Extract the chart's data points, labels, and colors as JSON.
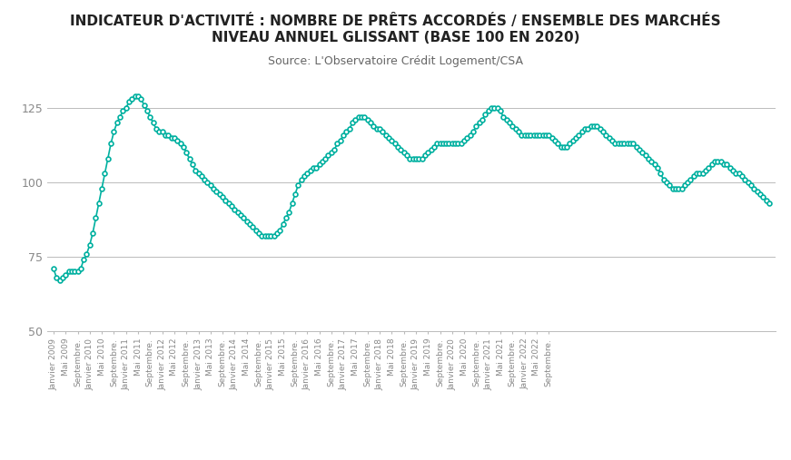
{
  "title_line1": "INDICATEUR D'ACTIVITÉ : NOMBRE DE PRÊTS ACCORDÉS / ENSEMBLE DES MARCHÉS",
  "title_line2": "NIVEAU ANNUEL GLISSANT (BASE 100 EN 2020)",
  "source": "Source: L'Observatoire Crédit Logement/CSA",
  "line_color": "#00B0A0",
  "marker_color": "#00B0A0",
  "background_color": "#FFFFFF",
  "ylim": [
    50,
    135
  ],
  "yticks": [
    50,
    75,
    100,
    125
  ],
  "title_fontsize": 11,
  "source_fontsize": 9,
  "values": [
    71,
    68,
    67,
    68,
    69,
    70,
    70,
    70,
    70,
    71,
    74,
    76,
    79,
    83,
    88,
    93,
    98,
    103,
    108,
    113,
    117,
    120,
    122,
    124,
    125,
    127,
    128,
    129,
    129,
    128,
    126,
    124,
    122,
    120,
    118,
    117,
    117,
    116,
    116,
    115,
    115,
    114,
    113,
    112,
    110,
    108,
    106,
    104,
    103,
    102,
    101,
    100,
    99,
    98,
    97,
    96,
    95,
    94,
    93,
    92,
    91,
    90,
    89,
    88,
    87,
    86,
    85,
    84,
    83,
    82,
    82,
    82,
    82,
    82,
    83,
    84,
    86,
    88,
    90,
    93,
    96,
    99,
    101,
    102,
    103,
    104,
    105,
    105,
    106,
    107,
    108,
    109,
    110,
    111,
    113,
    114,
    116,
    117,
    118,
    120,
    121,
    122,
    122,
    122,
    121,
    120,
    119,
    118,
    118,
    117,
    116,
    115,
    114,
    113,
    112,
    111,
    110,
    109,
    108,
    108,
    108,
    108,
    108,
    109,
    110,
    111,
    112,
    113,
    113,
    113,
    113,
    113,
    113,
    113,
    113,
    113,
    114,
    115,
    116,
    117,
    119,
    120,
    121,
    123,
    124,
    125,
    125,
    125,
    124,
    122,
    121,
    120,
    119,
    118,
    117,
    116,
    116,
    116,
    116,
    116,
    116,
    116,
    116,
    116,
    116,
    115,
    114,
    113,
    112,
    112,
    112,
    113,
    114,
    115,
    116,
    117,
    118,
    118,
    119,
    119,
    119,
    118,
    117,
    116,
    115,
    114,
    113,
    113,
    113,
    113,
    113,
    113,
    113,
    112,
    111,
    110,
    109,
    108,
    107,
    106,
    105,
    103,
    101,
    100,
    99,
    98,
    98,
    98,
    98,
    99,
    100,
    101,
    102,
    103,
    103,
    103,
    104,
    105,
    106,
    107,
    107,
    107,
    106,
    106,
    105,
    104,
    103,
    103,
    102,
    101,
    100,
    99,
    98,
    97,
    96,
    95,
    94,
    93
  ],
  "x_tick_labels": [
    "Janvier 2009",
    "Mai 2009",
    "Septembre.",
    "Janvier 2010",
    "Mai 2010",
    "Septembre.",
    "Janvier 2011",
    "Mai 2011",
    "Septembre.",
    "Janvier 2012",
    "Mai 2012",
    "Septembre.",
    "Janvier 2013",
    "Mai 2013",
    "Septembre.",
    "Janvier 2014",
    "Mai 2014",
    "Septembre.",
    "Janvier 2015",
    "Mai 2015",
    "Septembre.",
    "Janvier 2016",
    "Mai 2016",
    "Septembre.",
    "Janvier 2017",
    "Mai 2017",
    "Septembre.",
    "Janvier 2018",
    "Mai 2018",
    "Septembre.",
    "Janvier 2019",
    "Mai 2019",
    "Septembre.",
    "Janvier 2020",
    "Mai 2020",
    "Septembre.",
    "Janvier 2021",
    "Mai 2021",
    "Septembre.",
    "Janvier 2022",
    "Mai 2022",
    "Septembre."
  ],
  "x_tick_positions": [
    0,
    4,
    8,
    12,
    16,
    20,
    24,
    28,
    32,
    36,
    40,
    44,
    48,
    52,
    56,
    60,
    64,
    68,
    72,
    76,
    80,
    84,
    88,
    92,
    96,
    100,
    104,
    108,
    112,
    116,
    120,
    124,
    128,
    132,
    136,
    140,
    144,
    148,
    152,
    156,
    160,
    164
  ]
}
